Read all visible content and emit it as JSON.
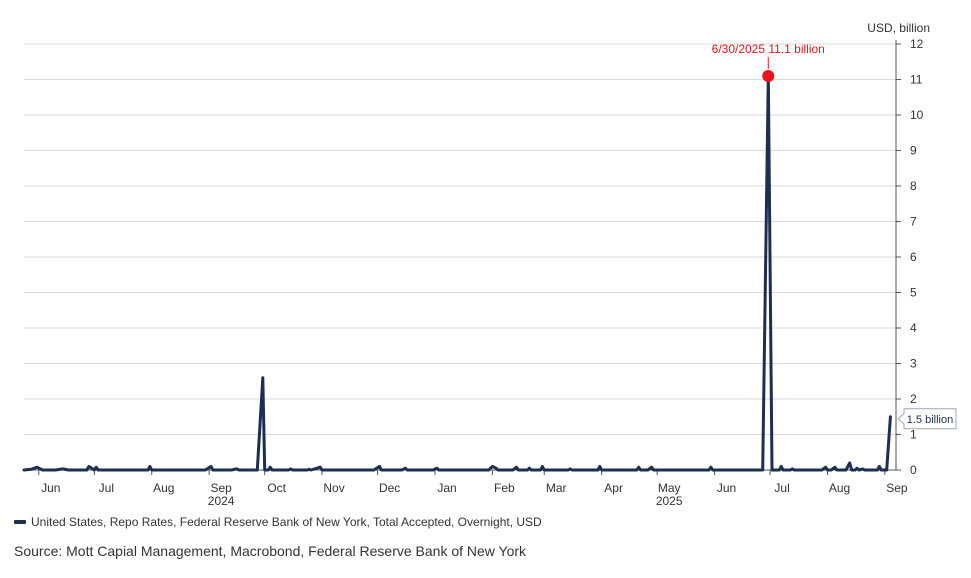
{
  "chart_data": {
    "type": "line",
    "x_axis_type": "date",
    "x_range": [
      "2024-05-24",
      "2025-09-07"
    ],
    "y_unit_label": "USD, billion",
    "ylim": [
      0,
      12
    ],
    "y_ticks": [
      0,
      1,
      2,
      3,
      4,
      5,
      6,
      7,
      8,
      9,
      10,
      11,
      12
    ],
    "y_axis_side": "right",
    "grid": "horizontal",
    "x_ticks": [
      {
        "label": "Jun",
        "date": "2024-06-01"
      },
      {
        "label": "Jul",
        "date": "2024-07-01"
      },
      {
        "label": "Aug",
        "date": "2024-08-01"
      },
      {
        "label": "Sep",
        "date": "2024-09-01"
      },
      {
        "label": "Oct",
        "date": "2024-10-01"
      },
      {
        "label": "Nov",
        "date": "2024-11-01"
      },
      {
        "label": "Dec",
        "date": "2024-12-01"
      },
      {
        "label": "Jan",
        "date": "2025-01-01"
      },
      {
        "label": "Feb",
        "date": "2025-02-01"
      },
      {
        "label": "Mar",
        "date": "2025-03-01"
      },
      {
        "label": "Apr",
        "date": "2025-04-01"
      },
      {
        "label": "May",
        "date": "2025-05-01"
      },
      {
        "label": "Jun",
        "date": "2025-06-01"
      },
      {
        "label": "Jul",
        "date": "2025-07-01"
      },
      {
        "label": "Aug",
        "date": "2025-08-01"
      },
      {
        "label": "Sep",
        "date": "2025-09-01"
      }
    ],
    "year_labels": [
      {
        "label": "2024",
        "date": "2024-09-01"
      },
      {
        "label": "2025",
        "date": "2025-05-01"
      }
    ],
    "series": [
      {
        "name": "United States, Repo Rates, Federal Reserve Bank of New York, Total Accepted, Overnight, USD",
        "color": "#1c2f52",
        "points": [
          [
            "2024-05-24",
            0
          ],
          [
            "2024-05-28",
            0.02
          ],
          [
            "2024-05-31",
            0.08
          ],
          [
            "2024-06-03",
            0
          ],
          [
            "2024-06-10",
            0
          ],
          [
            "2024-06-14",
            0.03
          ],
          [
            "2024-06-17",
            0
          ],
          [
            "2024-06-27",
            0
          ],
          [
            "2024-06-28",
            0.1
          ],
          [
            "2024-07-01",
            0
          ],
          [
            "2024-07-02",
            0.08
          ],
          [
            "2024-07-03",
            0
          ],
          [
            "2024-07-30",
            0
          ],
          [
            "2024-07-31",
            0.1
          ],
          [
            "2024-08-01",
            0
          ],
          [
            "2024-08-30",
            0
          ],
          [
            "2024-09-02",
            0.1
          ],
          [
            "2024-09-03",
            0
          ],
          [
            "2024-09-13",
            0
          ],
          [
            "2024-09-16",
            0.03
          ],
          [
            "2024-09-17",
            0
          ],
          [
            "2024-09-27",
            0
          ],
          [
            "2024-09-30",
            2.6
          ],
          [
            "2024-10-01",
            0
          ],
          [
            "2024-10-03",
            0
          ],
          [
            "2024-10-04",
            0.08
          ],
          [
            "2024-10-05",
            0
          ],
          [
            "2024-10-14",
            0
          ],
          [
            "2024-10-15",
            0.03
          ],
          [
            "2024-10-16",
            0
          ],
          [
            "2024-10-24",
            0
          ],
          [
            "2024-10-25",
            0.02
          ],
          [
            "2024-10-26",
            0
          ],
          [
            "2024-10-31",
            0.08
          ],
          [
            "2024-11-01",
            0
          ],
          [
            "2024-11-29",
            0
          ],
          [
            "2024-12-02",
            0.1
          ],
          [
            "2024-12-03",
            0
          ],
          [
            "2024-12-14",
            0
          ],
          [
            "2024-12-16",
            0.05
          ],
          [
            "2024-12-17",
            0
          ],
          [
            "2024-12-31",
            0
          ],
          [
            "2025-01-02",
            0.05
          ],
          [
            "2025-01-03",
            0
          ],
          [
            "2025-01-30",
            0
          ],
          [
            "2025-02-01",
            0.1
          ],
          [
            "2025-02-03",
            0.05
          ],
          [
            "2025-02-04",
            0
          ],
          [
            "2025-02-12",
            0
          ],
          [
            "2025-02-14",
            0.08
          ],
          [
            "2025-02-15",
            0
          ],
          [
            "2025-02-20",
            0
          ],
          [
            "2025-02-21",
            0.05
          ],
          [
            "2025-02-22",
            0
          ],
          [
            "2025-02-27",
            0
          ],
          [
            "2025-02-28",
            0.1
          ],
          [
            "2025-03-01",
            0
          ],
          [
            "2025-03-14",
            0
          ],
          [
            "2025-03-15",
            0.03
          ],
          [
            "2025-03-16",
            0
          ],
          [
            "2025-03-30",
            0
          ],
          [
            "2025-03-31",
            0.1
          ],
          [
            "2025-04-01",
            0
          ],
          [
            "2025-04-20",
            0
          ],
          [
            "2025-04-21",
            0.08
          ],
          [
            "2025-04-22",
            0
          ],
          [
            "2025-04-26",
            0
          ],
          [
            "2025-04-28",
            0.08
          ],
          [
            "2025-04-29",
            0
          ],
          [
            "2025-05-29",
            0
          ],
          [
            "2025-05-30",
            0.08
          ],
          [
            "2025-05-31",
            0
          ],
          [
            "2025-06-27",
            0
          ],
          [
            "2025-06-30",
            11.1
          ],
          [
            "2025-07-02",
            0
          ],
          [
            "2025-07-06",
            0
          ],
          [
            "2025-07-07",
            0.1
          ],
          [
            "2025-07-08",
            0
          ],
          [
            "2025-07-12",
            0
          ],
          [
            "2025-07-13",
            0.03
          ],
          [
            "2025-07-14",
            0
          ],
          [
            "2025-07-29",
            0
          ],
          [
            "2025-07-31",
            0.08
          ],
          [
            "2025-08-01",
            0
          ],
          [
            "2025-08-03",
            0
          ],
          [
            "2025-08-05",
            0.08
          ],
          [
            "2025-08-06",
            0
          ],
          [
            "2025-08-11",
            0
          ],
          [
            "2025-08-13",
            0.2
          ],
          [
            "2025-08-14",
            0
          ],
          [
            "2025-08-16",
            0
          ],
          [
            "2025-08-17",
            0.05
          ],
          [
            "2025-08-18",
            0
          ],
          [
            "2025-08-20",
            0.03
          ],
          [
            "2025-08-21",
            0
          ],
          [
            "2025-08-28",
            0
          ],
          [
            "2025-08-29",
            0.1
          ],
          [
            "2025-08-30",
            0
          ],
          [
            "2025-09-02",
            0
          ],
          [
            "2025-09-04",
            1.5
          ]
        ]
      }
    ],
    "annotations": [
      {
        "text": "6/30/2025 11.1 billion",
        "date": "2025-06-30",
        "value": 11.1,
        "color": "#e8141c"
      },
      {
        "text": "1.5 billion",
        "date": "2025-09-04",
        "value": 1.5
      }
    ],
    "legend_position": "bottom-left",
    "source": "Source: Mott Capial Management, Macrobond, Federal Reserve Bank of New York"
  }
}
